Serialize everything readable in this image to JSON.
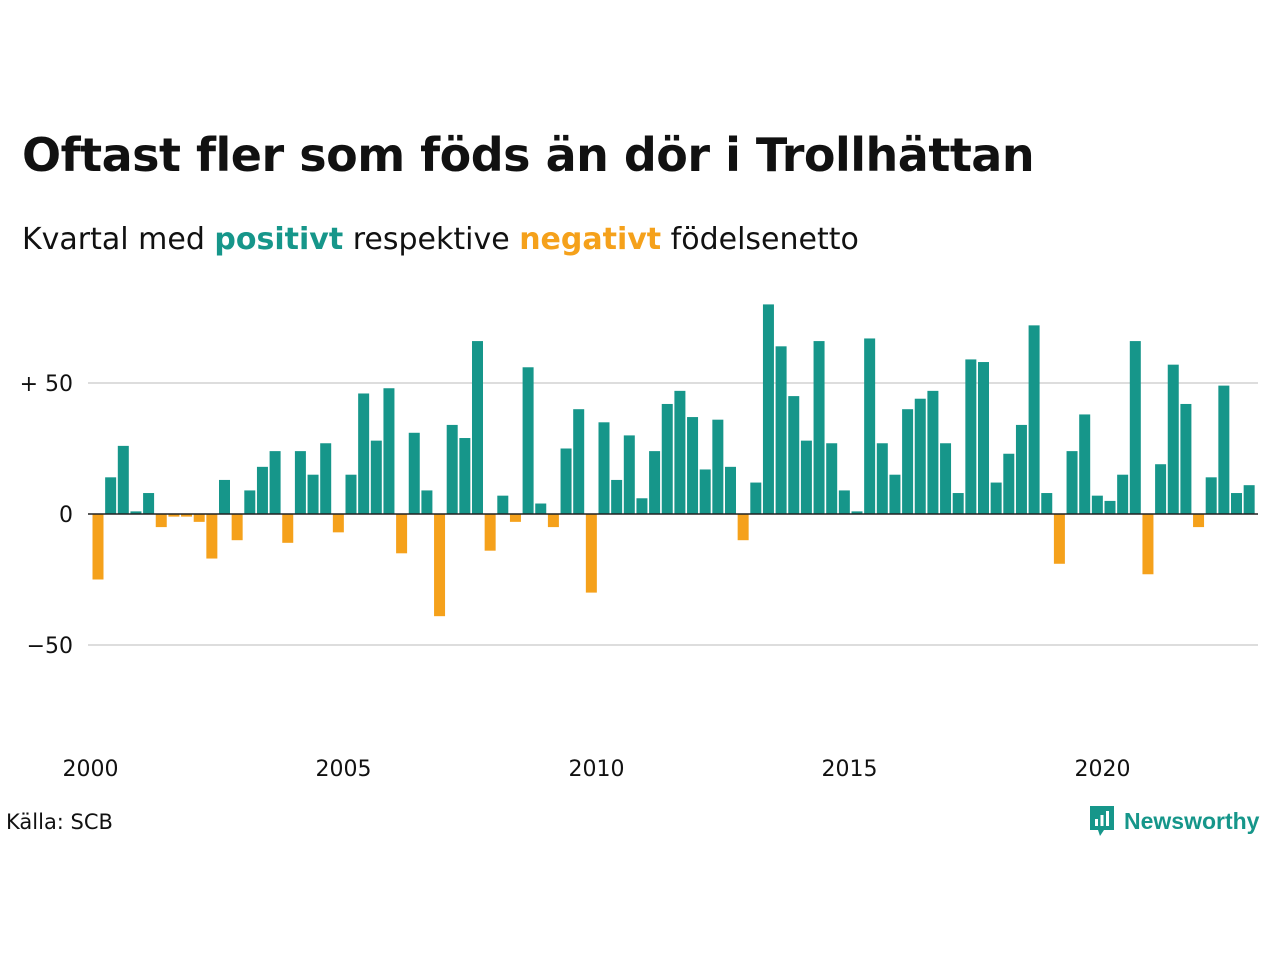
{
  "title": "Oftast fler som föds än dör i Trollhättan",
  "subtitle": {
    "prefix": "Kvartal med ",
    "positive_word": "positivt",
    "middle": " respektive ",
    "negative_word": "negativt",
    "suffix": " födelsenetto"
  },
  "source": "Källa: SCB",
  "brand": "Newsworthy",
  "colors": {
    "positive": "#16968a",
    "negative": "#f5a11b",
    "grid": "#dddddd",
    "text": "#111111"
  },
  "chart_data": {
    "type": "bar",
    "x_start": "2000-Q1",
    "x_ticks": [
      "2000",
      "2005",
      "2010",
      "2015",
      "2020"
    ],
    "y_ticks": [
      {
        "value": 50,
        "label": "+ 50"
      },
      {
        "value": 0,
        "label": "0"
      },
      {
        "value": -50,
        "label": "−50"
      }
    ],
    "ylim": [
      -60,
      82
    ],
    "grid": true,
    "values": [
      -25,
      14,
      26,
      1,
      8,
      -5,
      -1,
      -1,
      -3,
      -17,
      13,
      -10,
      9,
      18,
      24,
      -11,
      24,
      15,
      27,
      -7,
      15,
      46,
      28,
      48,
      -15,
      31,
      9,
      -39,
      34,
      29,
      66,
      -14,
      7,
      -3,
      56,
      4,
      -5,
      25,
      40,
      -30,
      35,
      13,
      30,
      6,
      24,
      42,
      47,
      37,
      17,
      36,
      18,
      -10,
      12,
      80,
      64,
      45,
      28,
      66,
      27,
      9,
      1,
      67,
      27,
      15,
      40,
      44,
      47,
      27,
      8,
      59,
      58,
      12,
      23,
      34,
      72,
      8,
      -19,
      24,
      38,
      7,
      5,
      15,
      66,
      -23,
      19,
      57,
      42,
      -5,
      14,
      49,
      8,
      11
    ]
  }
}
